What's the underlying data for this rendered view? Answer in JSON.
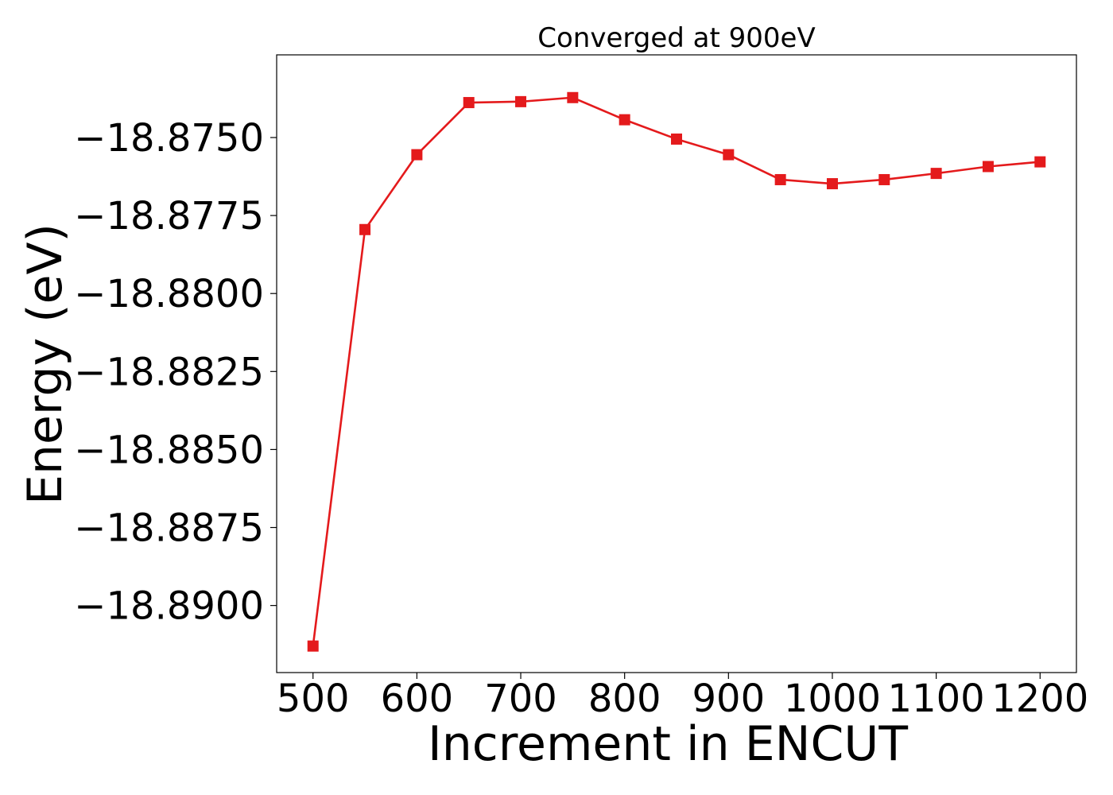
{
  "chart_data": {
    "type": "line",
    "title": "Converged at 900eV",
    "xlabel": "Increment in ENCUT",
    "ylabel": "Energy (eV)",
    "x": [
      500,
      550,
      600,
      650,
      700,
      750,
      800,
      850,
      900,
      950,
      1000,
      1050,
      1100,
      1150,
      1200
    ],
    "series": [
      {
        "values": [
          -18.8913,
          -18.87795,
          -18.87555,
          -18.87388,
          -18.87385,
          -18.87372,
          -18.87443,
          -18.87505,
          -18.87555,
          -18.87635,
          -18.87648,
          -18.87635,
          -18.87615,
          -18.87593,
          -18.87578
        ],
        "color": "#e41a1c",
        "marker": "square"
      }
    ],
    "xticks": [
      500,
      600,
      700,
      800,
      900,
      1000,
      1100,
      1200
    ],
    "xtick_labels": [
      "500",
      "600",
      "700",
      "800",
      "900",
      "1000",
      "1100",
      "1200"
    ],
    "yticks": [
      -18.875,
      -18.8775,
      -18.88,
      -18.8825,
      -18.885,
      -18.8875,
      -18.89
    ],
    "ytick_labels": [
      "−18.8750",
      "−18.8775",
      "−18.8800",
      "−18.8825",
      "−18.8850",
      "−18.8875",
      "−18.8900"
    ],
    "xlim": [
      465,
      1235
    ],
    "ylim": [
      -18.89215,
      -18.87235
    ],
    "grid": false,
    "legend": false
  }
}
